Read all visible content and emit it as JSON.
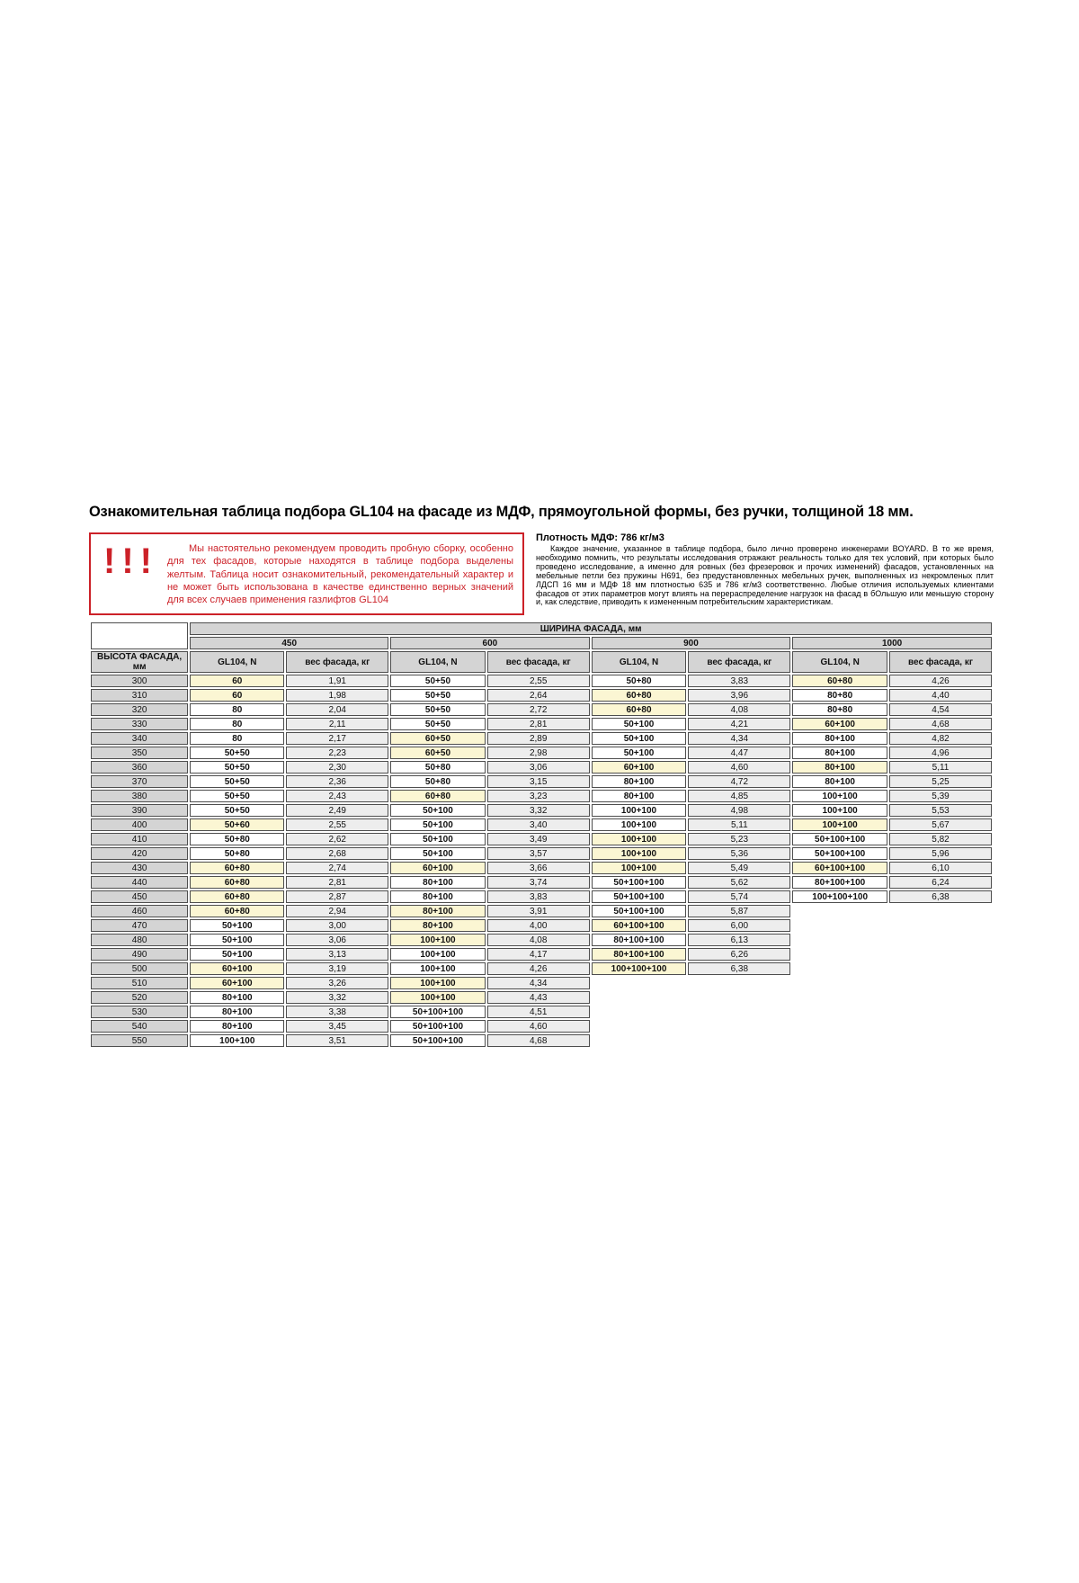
{
  "title": "Ознакомительная таблица подбора GL104 на фасаде из МДФ, прямоугольной формы, без ручки, толщиной 18 мм.",
  "warning": {
    "icon": "!!!",
    "text": "Мы настоятельно рекомендуем проводить пробную сборку, особенно для тех фасадов, которые находятся в таблице подбора выделены желтым. Таблица носит ознакомительный, рекомендательный характер и не может быть использована в качестве единственно верных значений для всех случаев применения газлифтов GL104"
  },
  "info": {
    "heading": "Плотность МДФ: 786 кг/м3",
    "body": "Каждое значение, указанное в таблице подбора, было лично проверено инженерами BOYARD. В то же время, необходимо помнить, что результаты исследования отражают реальность только для тех условий, при которых было проведено исследование, а именно для ровных (без фрезеровок и прочих изменений) фасадов, установленных на мебельные петли без пружины Н691, без предустановленных мебельных ручек, выполненных из некромленых плит ЛДСП 16 мм и МДФ 18 мм плотностью 635 и 786 кг/м3 соответственно. Любые отличия используемых клиентами фасадов от этих параметров могут влиять на перераспределение нагрузок на фасад в бОльшую или меньшую сторону и, как следствие, приводить к измененным потребительским характеристикам."
  },
  "colors": {
    "accent_red": "#cc2128",
    "highlight_yellow": "#fbf6d3",
    "header_gray": "#d4d4d4",
    "weight_cell_gray": "#ededed"
  },
  "table": {
    "top_header": "ШИРИНА ФАСАДА, мм",
    "width_groups": [
      "450",
      "600",
      "900",
      "1000"
    ],
    "col_headers": {
      "height": "ВЫСОТА ФАСАДА, мм",
      "gl": "GL104, N",
      "weight": "вес фасада, кг"
    },
    "rows": [
      {
        "height": "300",
        "cells": [
          {
            "gl": "60",
            "w": "1,91",
            "hl": true
          },
          {
            "gl": "50+50",
            "w": "2,55",
            "hl": false
          },
          {
            "gl": "50+80",
            "w": "3,83",
            "hl": false
          },
          {
            "gl": "60+80",
            "w": "4,26",
            "hl": true
          }
        ]
      },
      {
        "height": "310",
        "cells": [
          {
            "gl": "60",
            "w": "1,98",
            "hl": true
          },
          {
            "gl": "50+50",
            "w": "2,64",
            "hl": false
          },
          {
            "gl": "60+80",
            "w": "3,96",
            "hl": true
          },
          {
            "gl": "80+80",
            "w": "4,40",
            "hl": false
          }
        ]
      },
      {
        "height": "320",
        "cells": [
          {
            "gl": "80",
            "w": "2,04",
            "hl": false
          },
          {
            "gl": "50+50",
            "w": "2,72",
            "hl": false
          },
          {
            "gl": "60+80",
            "w": "4,08",
            "hl": true
          },
          {
            "gl": "80+80",
            "w": "4,54",
            "hl": false
          }
        ]
      },
      {
        "height": "330",
        "cells": [
          {
            "gl": "80",
            "w": "2,11",
            "hl": false
          },
          {
            "gl": "50+50",
            "w": "2,81",
            "hl": false
          },
          {
            "gl": "50+100",
            "w": "4,21",
            "hl": false
          },
          {
            "gl": "60+100",
            "w": "4,68",
            "hl": true
          }
        ]
      },
      {
        "height": "340",
        "cells": [
          {
            "gl": "80",
            "w": "2,17",
            "hl": false
          },
          {
            "gl": "60+50",
            "w": "2,89",
            "hl": true
          },
          {
            "gl": "50+100",
            "w": "4,34",
            "hl": false
          },
          {
            "gl": "80+100",
            "w": "4,82",
            "hl": false
          }
        ]
      },
      {
        "height": "350",
        "cells": [
          {
            "gl": "50+50",
            "w": "2,23",
            "hl": false
          },
          {
            "gl": "60+50",
            "w": "2,98",
            "hl": true
          },
          {
            "gl": "50+100",
            "w": "4,47",
            "hl": false
          },
          {
            "gl": "80+100",
            "w": "4,96",
            "hl": false
          }
        ]
      },
      {
        "height": "360",
        "cells": [
          {
            "gl": "50+50",
            "w": "2,30",
            "hl": false
          },
          {
            "gl": "50+80",
            "w": "3,06",
            "hl": false
          },
          {
            "gl": "60+100",
            "w": "4,60",
            "hl": true
          },
          {
            "gl": "80+100",
            "w": "5,11",
            "hl": true
          }
        ]
      },
      {
        "height": "370",
        "cells": [
          {
            "gl": "50+50",
            "w": "2,36",
            "hl": false
          },
          {
            "gl": "50+80",
            "w": "3,15",
            "hl": false
          },
          {
            "gl": "80+100",
            "w": "4,72",
            "hl": false
          },
          {
            "gl": "80+100",
            "w": "5,25",
            "hl": false
          }
        ]
      },
      {
        "height": "380",
        "cells": [
          {
            "gl": "50+50",
            "w": "2,43",
            "hl": false
          },
          {
            "gl": "60+80",
            "w": "3,23",
            "hl": true
          },
          {
            "gl": "80+100",
            "w": "4,85",
            "hl": false
          },
          {
            "gl": "100+100",
            "w": "5,39",
            "hl": false
          }
        ]
      },
      {
        "height": "390",
        "cells": [
          {
            "gl": "50+50",
            "w": "2,49",
            "hl": false
          },
          {
            "gl": "50+100",
            "w": "3,32",
            "hl": false
          },
          {
            "gl": "100+100",
            "w": "4,98",
            "hl": false
          },
          {
            "gl": "100+100",
            "w": "5,53",
            "hl": false
          }
        ]
      },
      {
        "height": "400",
        "cells": [
          {
            "gl": "50+60",
            "w": "2,55",
            "hl": true
          },
          {
            "gl": "50+100",
            "w": "3,40",
            "hl": false
          },
          {
            "gl": "100+100",
            "w": "5,11",
            "hl": false
          },
          {
            "gl": "100+100",
            "w": "5,67",
            "hl": true
          }
        ]
      },
      {
        "height": "410",
        "cells": [
          {
            "gl": "50+80",
            "w": "2,62",
            "hl": false
          },
          {
            "gl": "50+100",
            "w": "3,49",
            "hl": false
          },
          {
            "gl": "100+100",
            "w": "5,23",
            "hl": true
          },
          {
            "gl": "50+100+100",
            "w": "5,82",
            "hl": false
          }
        ]
      },
      {
        "height": "420",
        "cells": [
          {
            "gl": "50+80",
            "w": "2,68",
            "hl": false
          },
          {
            "gl": "50+100",
            "w": "3,57",
            "hl": false
          },
          {
            "gl": "100+100",
            "w": "5,36",
            "hl": true
          },
          {
            "gl": "50+100+100",
            "w": "5,96",
            "hl": false
          }
        ]
      },
      {
        "height": "430",
        "cells": [
          {
            "gl": "60+80",
            "w": "2,74",
            "hl": true
          },
          {
            "gl": "60+100",
            "w": "3,66",
            "hl": true
          },
          {
            "gl": "100+100",
            "w": "5,49",
            "hl": true
          },
          {
            "gl": "60+100+100",
            "w": "6,10",
            "hl": true
          }
        ]
      },
      {
        "height": "440",
        "cells": [
          {
            "gl": "60+80",
            "w": "2,81",
            "hl": true
          },
          {
            "gl": "80+100",
            "w": "3,74",
            "hl": false
          },
          {
            "gl": "50+100+100",
            "w": "5,62",
            "hl": false
          },
          {
            "gl": "80+100+100",
            "w": "6,24",
            "hl": false
          }
        ]
      },
      {
        "height": "450",
        "cells": [
          {
            "gl": "60+80",
            "w": "2,87",
            "hl": true
          },
          {
            "gl": "80+100",
            "w": "3,83",
            "hl": false
          },
          {
            "gl": "50+100+100",
            "w": "5,74",
            "hl": false
          },
          {
            "gl": "100+100+100",
            "w": "6,38",
            "hl": false
          }
        ]
      },
      {
        "height": "460",
        "cells": [
          {
            "gl": "60+80",
            "w": "2,94",
            "hl": true
          },
          {
            "gl": "80+100",
            "w": "3,91",
            "hl": true
          },
          {
            "gl": "50+100+100",
            "w": "5,87",
            "hl": false
          }
        ]
      },
      {
        "height": "470",
        "cells": [
          {
            "gl": "50+100",
            "w": "3,00",
            "hl": false
          },
          {
            "gl": "80+100",
            "w": "4,00",
            "hl": true
          },
          {
            "gl": "60+100+100",
            "w": "6,00",
            "hl": true
          }
        ]
      },
      {
        "height": "480",
        "cells": [
          {
            "gl": "50+100",
            "w": "3,06",
            "hl": false
          },
          {
            "gl": "100+100",
            "w": "4,08",
            "hl": true
          },
          {
            "gl": "80+100+100",
            "w": "6,13",
            "hl": false
          }
        ]
      },
      {
        "height": "490",
        "cells": [
          {
            "gl": "50+100",
            "w": "3,13",
            "hl": false
          },
          {
            "gl": "100+100",
            "w": "4,17",
            "hl": false
          },
          {
            "gl": "80+100+100",
            "w": "6,26",
            "hl": true
          }
        ]
      },
      {
        "height": "500",
        "cells": [
          {
            "gl": "60+100",
            "w": "3,19",
            "hl": true
          },
          {
            "gl": "100+100",
            "w": "4,26",
            "hl": false
          },
          {
            "gl": "100+100+100",
            "w": "6,38",
            "hl": true
          }
        ]
      },
      {
        "height": "510",
        "cells": [
          {
            "gl": "60+100",
            "w": "3,26",
            "hl": true
          },
          {
            "gl": "100+100",
            "w": "4,34",
            "hl": true
          }
        ]
      },
      {
        "height": "520",
        "cells": [
          {
            "gl": "80+100",
            "w": "3,32",
            "hl": false
          },
          {
            "gl": "100+100",
            "w": "4,43",
            "hl": true
          }
        ]
      },
      {
        "height": "530",
        "cells": [
          {
            "gl": "80+100",
            "w": "3,38",
            "hl": false
          },
          {
            "gl": "50+100+100",
            "w": "4,51",
            "hl": false
          }
        ]
      },
      {
        "height": "540",
        "cells": [
          {
            "gl": "80+100",
            "w": "3,45",
            "hl": false
          },
          {
            "gl": "50+100+100",
            "w": "4,60",
            "hl": false
          }
        ]
      },
      {
        "height": "550",
        "cells": [
          {
            "gl": "100+100",
            "w": "3,51",
            "hl": false
          },
          {
            "gl": "50+100+100",
            "w": "4,68",
            "hl": false
          }
        ]
      }
    ]
  }
}
